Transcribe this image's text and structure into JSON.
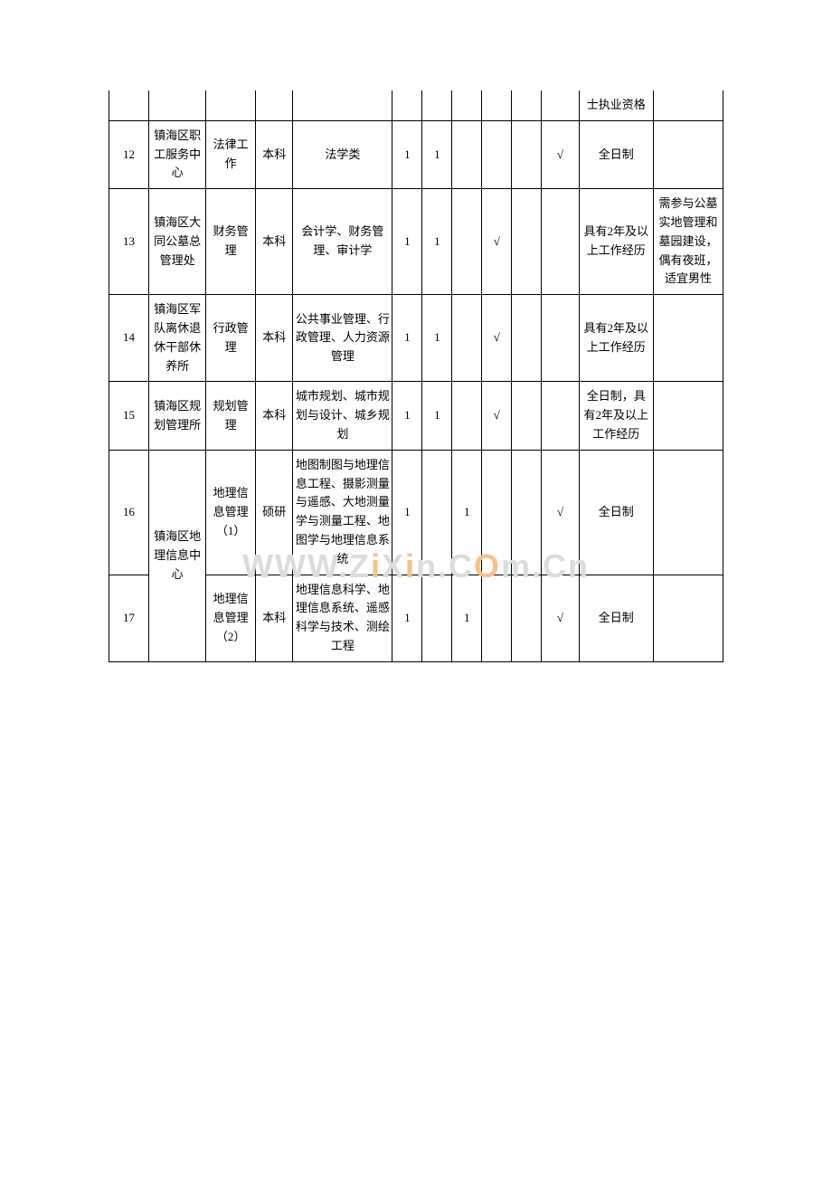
{
  "watermark": {
    "part1": "WWW.Z",
    "part2": "i",
    "part3": "X",
    "part4": "i",
    "part5": "n.C",
    "part6": "O",
    "part7": "m.Cn"
  },
  "rows": [
    {
      "idx": "",
      "org": "",
      "pos": "",
      "edu": "",
      "major": "",
      "c1": "",
      "c2": "",
      "c3": "",
      "c4": "",
      "c5": "",
      "c6": "",
      "req": "士执业资格",
      "note": ""
    },
    {
      "idx": "12",
      "org": "镇海区职工服务中心",
      "pos": "法律工作",
      "edu": "本科",
      "major": "法学类",
      "c1": "1",
      "c2": "1",
      "c3": "",
      "c4": "",
      "c5": "",
      "c6": "√",
      "req": "全日制",
      "note": ""
    },
    {
      "idx": "13",
      "org": "镇海区大同公墓总管理处",
      "pos": "财务管理",
      "edu": "本科",
      "major": "会计学、财务管理、审计学",
      "c1": "1",
      "c2": "1",
      "c3": "",
      "c4": "√",
      "c5": "",
      "c6": "",
      "req": "具有2年及以上工作经历",
      "note": "需参与公墓实地管理和墓园建设，偶有夜班，适宜男性"
    },
    {
      "idx": "14",
      "org": "镇海区军队离休退休干部休养所",
      "pos": "行政管理",
      "edu": "本科",
      "major": "公共事业管理、行政管理、人力资源管理",
      "c1": "1",
      "c2": "1",
      "c3": "",
      "c4": "√",
      "c5": "",
      "c6": "",
      "req": "具有2年及以上工作经历",
      "note": ""
    },
    {
      "idx": "15",
      "org": "镇海区规划管理所",
      "pos": "规划管理",
      "edu": "本科",
      "major": "城市规划、城市规划与设计、城乡规划",
      "c1": "1",
      "c2": "1",
      "c3": "",
      "c4": "√",
      "c5": "",
      "c6": "",
      "req": "全日制，具有2年及以上工作经历",
      "note": ""
    },
    {
      "idx": "16",
      "org": "镇海区地理信息中心",
      "pos": "地理信息管理（1）",
      "edu": "硕研",
      "major": "地图制图与地理信息工程、摄影测量与遥感、大地测量学与测量工程、地图学与地理信息系统",
      "c1": "1",
      "c2": "",
      "c3": "1",
      "c4": "",
      "c5": "",
      "c6": "√",
      "req": "全日制",
      "note": "",
      "orgRowspan": 2
    },
    {
      "idx": "17",
      "org": "",
      "pos": "地理信息管理（2）",
      "edu": "本科",
      "major": "地理信息科学、地理信息系统、遥感科学与技术、测绘工程",
      "c1": "1",
      "c2": "",
      "c3": "1",
      "c4": "",
      "c5": "",
      "c6": "√",
      "req": "全日制",
      "note": "",
      "skipOrg": true
    }
  ]
}
